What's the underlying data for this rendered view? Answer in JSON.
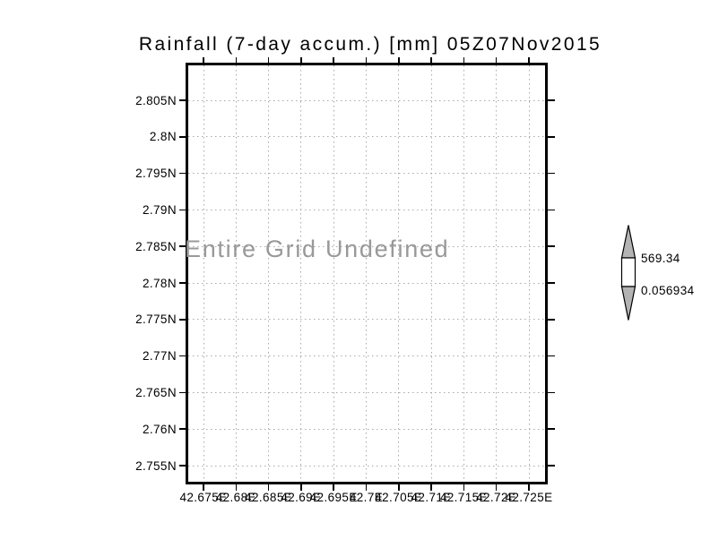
{
  "title": "Rainfall (7-day accum.) [mm] 05Z07Nov2015",
  "chart_data": {
    "type": "map",
    "title": "Rainfall (7-day accum.) [mm] 05Z07Nov2015",
    "annotation": "Entire Grid Undefined",
    "x_tick_labels": [
      "42.675E",
      "42.68E",
      "42.685E",
      "42.69E",
      "42.695E",
      "42.7E",
      "42.705E",
      "42.71E",
      "42.715E",
      "42.72E",
      "42.725E"
    ],
    "y_tick_labels": [
      "2.805N",
      "2.8N",
      "2.795N",
      "2.79N",
      "2.785N",
      "2.78N",
      "2.775N",
      "2.77N",
      "2.765N",
      "2.76N",
      "2.755N"
    ],
    "grid": true,
    "legend_position": "right",
    "colorbar": {
      "max_label": "569.34",
      "min_label": "0.056934",
      "triangle_fill": "#b3b3b3",
      "box_fill": "#ffffff",
      "outline": "#000000"
    },
    "colors": {
      "frame": "#000000",
      "grid_lines": "#aaaaaa",
      "annotation_text": "#999999",
      "tick_labels": "#000000",
      "background": "#ffffff"
    }
  }
}
